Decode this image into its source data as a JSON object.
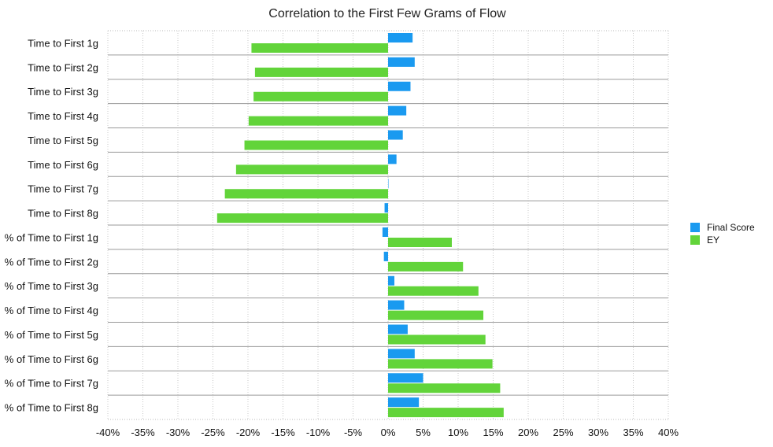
{
  "chart_data": {
    "type": "bar",
    "orientation": "horizontal",
    "title": "Correlation to the First Few Grams of Flow",
    "xlabel": "",
    "ylabel": "",
    "categories": [
      "Time to First 1g",
      "Time to First 2g",
      "Time to First 3g",
      "Time to First 4g",
      "Time to First 5g",
      "Time to First 6g",
      "Time to First 7g",
      "Time to First 8g",
      "% of Time to First 1g",
      "% of Time to First 2g",
      "% of Time to First 3g",
      "% of Time to First 4g",
      "% of Time to First 5g",
      "% of Time to First 6g",
      "% of Time to First 7g",
      "% of Time to First 8g"
    ],
    "series": [
      {
        "name": "Final Score",
        "color": "#1a9af0",
        "values": [
          3.5,
          3.8,
          3.2,
          2.6,
          2.1,
          1.2,
          0.0,
          -0.5,
          -0.8,
          -0.6,
          0.9,
          2.3,
          2.8,
          3.8,
          5.0,
          4.4
        ]
      },
      {
        "name": "EY",
        "color": "#62d43a",
        "values": [
          -19.5,
          -19.0,
          -19.2,
          -19.9,
          -20.5,
          -21.7,
          -23.3,
          -24.4,
          9.1,
          10.7,
          12.9,
          13.6,
          13.9,
          14.9,
          16.0,
          16.5
        ]
      }
    ],
    "xlim": [
      -40,
      40
    ],
    "xticks": [
      -40,
      -35,
      -30,
      -25,
      -20,
      -15,
      -10,
      -5,
      0,
      5,
      10,
      15,
      20,
      25,
      30,
      35,
      40
    ],
    "tick_labels": [
      "-40%",
      "-35%",
      "-30%",
      "-25%",
      "-20%",
      "-15%",
      "-10%",
      "-5%",
      "0%",
      "5%",
      "10%",
      "15%",
      "20%",
      "25%",
      "30%",
      "35%",
      "40%"
    ],
    "grid": true,
    "legend": "right"
  }
}
